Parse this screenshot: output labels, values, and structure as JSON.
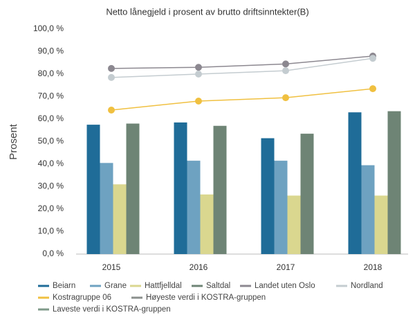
{
  "chart_data": {
    "type": "bar",
    "title": "Netto lånegjeld i prosent av brutto driftsinntekter(B)",
    "y_label": "Prosent",
    "categories": [
      "2015",
      "2016",
      "2017",
      "2018"
    ],
    "ylim": [
      0,
      100
    ],
    "yticks": [
      {
        "value": 0,
        "label": "0,0 %"
      },
      {
        "value": 10,
        "label": "10,0 %"
      },
      {
        "value": 20,
        "label": "20,0 %"
      },
      {
        "value": 30,
        "label": "30,0 %"
      },
      {
        "value": 40,
        "label": "40,0 %"
      },
      {
        "value": 50,
        "label": "50,0 %"
      },
      {
        "value": 60,
        "label": "60,0 %"
      },
      {
        "value": 70,
        "label": "70,0 %"
      },
      {
        "value": 80,
        "label": "80,0 %"
      },
      {
        "value": 90,
        "label": "90,0 %"
      },
      {
        "value": 100,
        "label": "100,0 %"
      }
    ],
    "grid": false,
    "series": [
      {
        "name": "Beiarn",
        "type": "bar",
        "color": "#1f6c98",
        "values": [
          57.5,
          58.5,
          51.5,
          63
        ]
      },
      {
        "name": "Grane",
        "type": "bar",
        "color": "#6ea2c1",
        "values": [
          40.5,
          41.5,
          41.5,
          39.5
        ]
      },
      {
        "name": "Hattfjelldal",
        "type": "bar",
        "color": "#dad78f",
        "values": [
          31,
          26.5,
          26,
          26
        ]
      },
      {
        "name": "Saltdal",
        "type": "bar",
        "color": "#6e8475",
        "values": [
          58,
          57,
          53.5,
          63.5
        ]
      },
      {
        "name": "Landet uten Oslo",
        "type": "line",
        "color": "#8c8890",
        "values": [
          82.5,
          83,
          84.5,
          88
        ]
      },
      {
        "name": "Nordland",
        "type": "line",
        "color": "#c4ccd0",
        "values": [
          78.5,
          80,
          81.5,
          87
        ]
      },
      {
        "name": "Kostragruppe 06",
        "type": "line",
        "color": "#f0c040",
        "values": [
          64,
          68,
          69.5,
          73.5
        ]
      },
      {
        "name": "Høyeste verdi i KOSTRA-gruppen",
        "type": "line",
        "color": "#8a8f8c",
        "values": [
          null,
          null,
          null,
          null
        ]
      },
      {
        "name": "Laveste verdi i KOSTRA-gruppen",
        "type": "line",
        "color": "#7f9a8a",
        "values": [
          null,
          null,
          null,
          null
        ]
      }
    ]
  }
}
